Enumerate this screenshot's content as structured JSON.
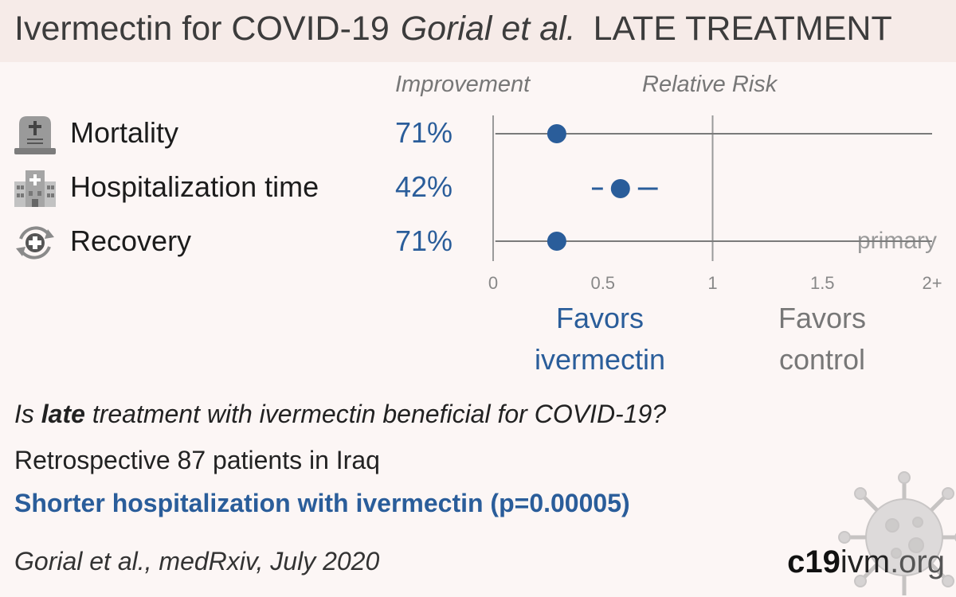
{
  "header": {
    "title": "Ivermectin for COVID-19",
    "authors": "Gorial et al.",
    "phase": "LATE TREATMENT"
  },
  "columns": {
    "improvement": "Improvement",
    "relative_risk": "Relative Risk"
  },
  "outcomes": [
    {
      "label": "Mortality",
      "improvement": "71%",
      "icon": "tombstone-icon"
    },
    {
      "label": "Hospitalization time",
      "improvement": "42%",
      "icon": "hospital-icon"
    },
    {
      "label": "Recovery",
      "improvement": "71%",
      "icon": "recovery-icon"
    }
  ],
  "favors": {
    "left_line1": "Favors",
    "left_line2": "ivermectin",
    "right_line1": "Favors",
    "right_line2": "control"
  },
  "summary": {
    "question_prefix": "Is ",
    "question_bold": "late",
    "question_suffix": " treatment with ivermectin beneficial for COVID-19?",
    "design": "Retrospective 87 patients in Iraq",
    "conclusion": "Shorter hospitalization with ivermectin (p=0.00005)",
    "citation": "Gorial et al., medRxiv, July 2020"
  },
  "brand": {
    "part1": "c19",
    "part2": "ivm",
    "part3": ".org"
  },
  "colors": {
    "accent": "#2a5d9a",
    "grid": "#9a9a9a",
    "ci_line": "#7a7a7a"
  },
  "chart_data": {
    "type": "forest",
    "xlabel": "",
    "x_ticks": [
      "0",
      "0.5",
      "1",
      "1.5",
      "2+"
    ],
    "xlim": [
      0,
      2
    ],
    "reference_line": 1,
    "series": [
      {
        "name": "Mortality",
        "estimate": 0.29,
        "ci_low": 0.01,
        "ci_high": 2.0,
        "arrow_high": true
      },
      {
        "name": "Hospitalization time",
        "estimate": 0.58,
        "ci_low": 0.45,
        "ci_high": 0.75
      },
      {
        "name": "Recovery",
        "estimate": 0.29,
        "ci_low": 0.01,
        "ci_high": 2.0,
        "arrow_high": true,
        "note": "primary"
      }
    ]
  }
}
